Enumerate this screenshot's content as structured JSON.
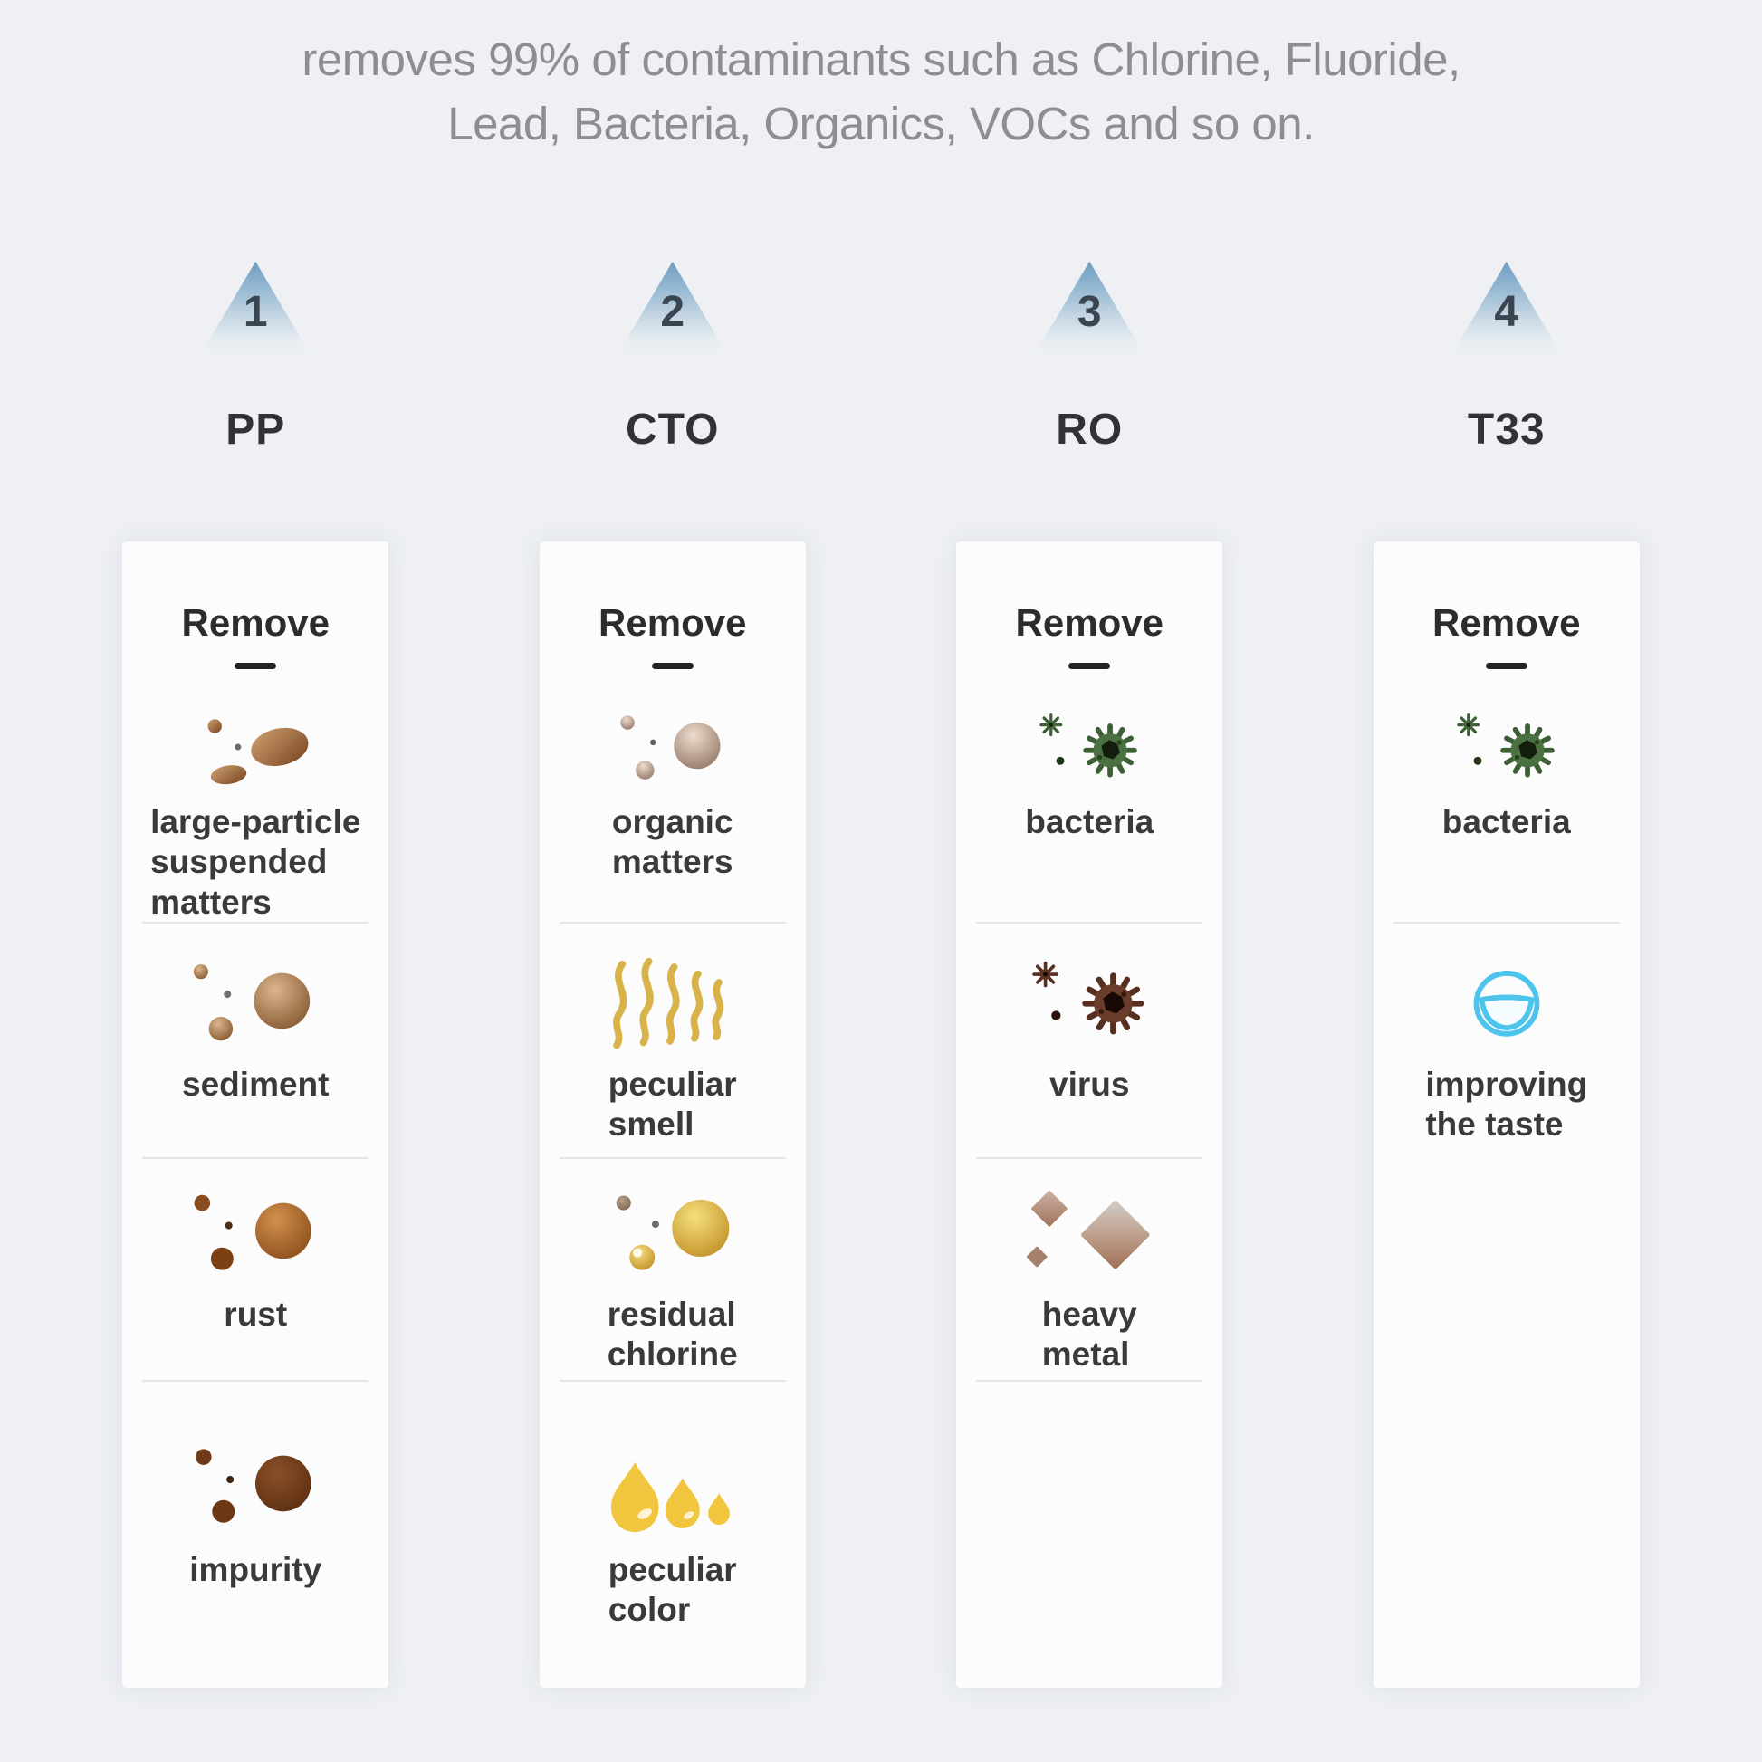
{
  "title": "removes 99% of contaminants such as Chlorine, Fluoride,\nLead, Bacteria, Organics, VOCs and so on.",
  "stages": [
    {
      "number": "1",
      "code": "PP",
      "remove_label": "Remove",
      "items": [
        {
          "label": "large-particle\nsuspended\nmatters",
          "icon": "brown-particles-icon"
        },
        {
          "label": "sediment",
          "icon": "sediment-particles-icon"
        },
        {
          "label": "rust",
          "icon": "rust-particles-icon"
        },
        {
          "label": "impurity",
          "icon": "impurity-particles-icon"
        }
      ]
    },
    {
      "number": "2",
      "code": "CTO",
      "remove_label": "Remove",
      "items": [
        {
          "label": "organic\nmatters",
          "icon": "organic-particles-icon"
        },
        {
          "label": "peculiar\nsmell",
          "icon": "smell-waves-icon"
        },
        {
          "label": "residual\nchlorine",
          "icon": "chlorine-spheres-icon"
        },
        {
          "label": "peculiar\ncolor",
          "icon": "color-drops-icon"
        }
      ]
    },
    {
      "number": "3",
      "code": "RO",
      "remove_label": "Remove",
      "items": [
        {
          "label": "bacteria",
          "icon": "bacteria-green-icon"
        },
        {
          "label": "virus",
          "icon": "virus-dark-icon"
        },
        {
          "label": "heavy\nmetal",
          "icon": "heavy-metal-diamonds-icon"
        }
      ]
    },
    {
      "number": "4",
      "code": "T33",
      "remove_label": "Remove",
      "items": [
        {
          "label": "bacteria",
          "icon": "bacteria-green-icon"
        },
        {
          "label": "improving\nthe taste",
          "icon": "smile-taste-icon"
        }
      ]
    }
  ],
  "colors": {
    "background": "#eef0f3",
    "card": "#fcfcfd",
    "title_text": "#8e8e91",
    "dark_text": "#2c2c2e",
    "triangle_blue": "#6f9cc0",
    "gold": "#e9c347",
    "bacteria_green": "#4b7041",
    "virus_brown": "#693c2b",
    "metal_brown": "#a06f53",
    "smile_blue": "#4dc4ec"
  }
}
